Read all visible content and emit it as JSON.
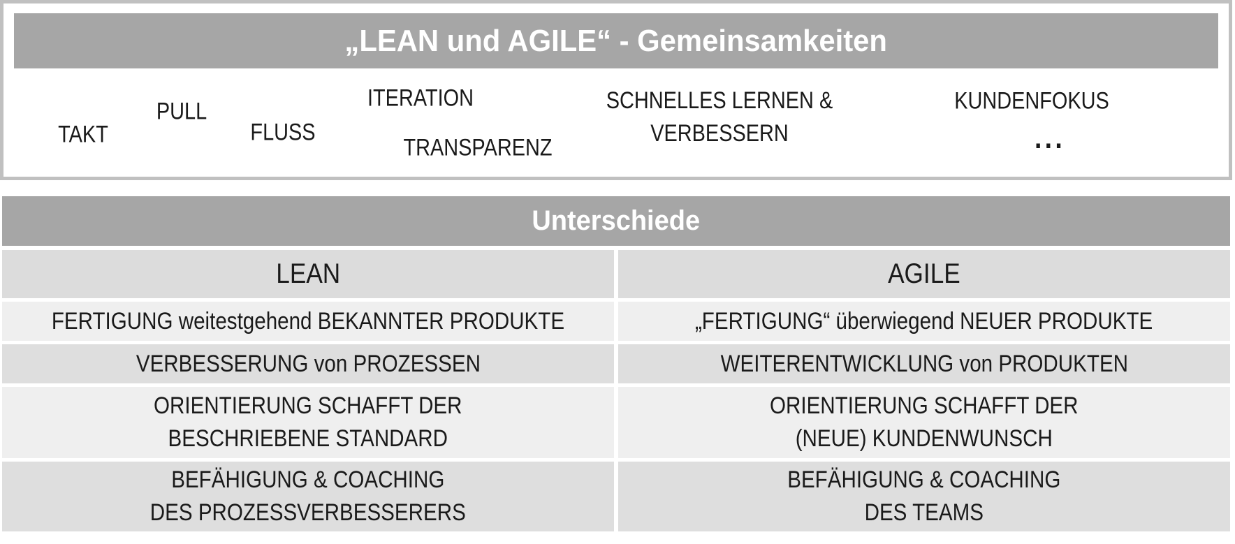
{
  "slide": {
    "commonalities": {
      "title": "„LEAN und AGILE“ - Gemeinsamkeiten",
      "terms": [
        "TAKT",
        "PULL",
        "FLUSS",
        "ITERATION",
        "TRANSPARENZ",
        "SCHNELLES LERNEN &\nVERBESSERN",
        "KUNDENFOKUS",
        "..."
      ]
    },
    "differences": {
      "title": "Unterschiede",
      "columns": [
        "LEAN",
        "AGILE"
      ],
      "rows": [
        {
          "lean": "FERTIGUNG weitestgehend BEKANNTER PRODUKTE",
          "agile": "„FERTIGUNG“ überwiegend NEUER PRODUKTE"
        },
        {
          "lean": "VERBESSERUNG von PROZESSEN",
          "agile": "WEITERENTWICKLUNG von PRODUKTEN"
        },
        {
          "lean": "ORIENTIERUNG SCHAFFT DER\nBESCHRIEBENE STANDARD",
          "agile": "ORIENTIERUNG SCHAFFT DER\n(NEUE) KUNDENWUNSCH"
        },
        {
          "lean": "BEFÄHIGUNG & COACHING\nDES PROZESSVERBESSERERS",
          "agile": "BEFÄHIGUNG & COACHING\nDES TEAMS"
        }
      ]
    },
    "colors": {
      "header_bar": "#a6a6a6",
      "box_border": "#c0c0c0",
      "row_light": "#efefef",
      "row_dark": "#dedede",
      "column_header_row": "#dcdcdc",
      "text_dark": "#1a1a1a",
      "text_white": "#ffffff"
    }
  }
}
